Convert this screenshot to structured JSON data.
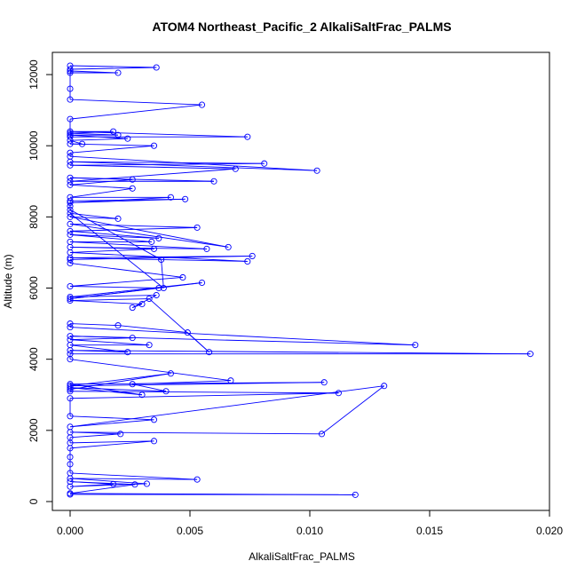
{
  "chart_data": {
    "type": "line",
    "title": "ATOM4 Northeast_Pacific_2 AlkaliSaltFrac_PALMS",
    "xlabel": "AlkaliSaltFrac_PALMS",
    "ylabel": "Altitude (m)",
    "xlim": [
      0,
      0.02
    ],
    "ylim": [
      0,
      12500
    ],
    "xticks": [
      0.0,
      0.005,
      0.01,
      0.015,
      0.02
    ],
    "xtick_labels": [
      "0.000",
      "0.005",
      "0.010",
      "0.015",
      "0.020"
    ],
    "yticks": [
      0,
      2000,
      4000,
      6000,
      8000,
      10000,
      12000
    ],
    "ytick_labels": [
      "0",
      "2000",
      "4000",
      "6000",
      "8000",
      "10000",
      "12000"
    ],
    "grid": false,
    "series": [
      {
        "color": "#0000ff",
        "marker": "open-circle",
        "points": [
          [
            0.0,
            200
          ],
          [
            0.0119,
            190
          ],
          [
            0.0,
            230
          ],
          [
            0.0027,
            480
          ],
          [
            0.0,
            560
          ],
          [
            0.0018,
            490
          ],
          [
            0.0,
            420
          ],
          [
            0.0032,
            500
          ],
          [
            0.0,
            650
          ],
          [
            0.0053,
            620
          ],
          [
            0.0,
            800
          ],
          [
            0.0,
            1050
          ],
          [
            0.0,
            1250
          ],
          [
            0.0,
            1500
          ],
          [
            0.0035,
            1700
          ],
          [
            0.0,
            1650
          ],
          [
            0.0,
            1800
          ],
          [
            0.0021,
            1900
          ],
          [
            0.0,
            1950
          ],
          [
            0.0105,
            1900
          ],
          [
            0.0131,
            3250
          ],
          [
            0.0,
            2100
          ],
          [
            0.0035,
            2300
          ],
          [
            0.0,
            2400
          ],
          [
            0.0,
            2900
          ],
          [
            0.0112,
            3050
          ],
          [
            0.0,
            3100
          ],
          [
            0.0,
            3150
          ],
          [
            0.0042,
            3600
          ],
          [
            0.0,
            3250
          ],
          [
            0.0106,
            3350
          ],
          [
            0.0,
            3300
          ],
          [
            0.003,
            3000
          ],
          [
            0.0,
            3200
          ],
          [
            0.004,
            3100
          ],
          [
            0.0026,
            3300
          ],
          [
            0.0067,
            3400
          ],
          [
            0.0,
            4000
          ],
          [
            0.0,
            4150
          ],
          [
            0.0192,
            4150
          ],
          [
            0.0,
            4250
          ],
          [
            0.0024,
            4200
          ],
          [
            0.0,
            4400
          ],
          [
            0.0033,
            4400
          ],
          [
            0.0,
            4550
          ],
          [
            0.0026,
            4600
          ],
          [
            0.0,
            4650
          ],
          [
            0.0144,
            4400
          ],
          [
            0.0,
            4900
          ],
          [
            0.0,
            5000
          ],
          [
            0.002,
            4950
          ],
          [
            0.0049,
            4750
          ],
          [
            0.0058,
            4200
          ],
          [
            0.0033,
            5700
          ],
          [
            0.0,
            5650
          ],
          [
            0.003,
            5550
          ],
          [
            0.0026,
            5450
          ],
          [
            0.0036,
            5800
          ],
          [
            0.0,
            5750
          ],
          [
            0.0055,
            6150
          ],
          [
            0.0,
            5700
          ],
          [
            0.0037,
            6000
          ],
          [
            0.0,
            6050
          ],
          [
            0.0047,
            6300
          ],
          [
            0.0,
            6700
          ],
          [
            0.0,
            6800
          ],
          [
            0.0076,
            6900
          ],
          [
            0.0,
            6850
          ],
          [
            0.0074,
            6750
          ],
          [
            0.0,
            7000
          ],
          [
            0.0035,
            7100
          ],
          [
            0.0,
            7150
          ],
          [
            0.0057,
            7100
          ],
          [
            0.0,
            7300
          ],
          [
            0.0034,
            7300
          ],
          [
            0.0,
            7500
          ],
          [
            0.0037,
            7400
          ],
          [
            0.0,
            7600
          ],
          [
            0.0053,
            7700
          ],
          [
            0.0,
            7800
          ],
          [
            0.0066,
            7150
          ],
          [
            0.0,
            8000
          ],
          [
            0.002,
            7950
          ],
          [
            0.0,
            8100
          ],
          [
            0.0039,
            6000
          ],
          [
            0.0038,
            6800
          ],
          [
            0.0,
            8200
          ],
          [
            0.0,
            8300
          ],
          [
            0.0,
            8450
          ],
          [
            0.0048,
            8500
          ],
          [
            0.0,
            8400
          ],
          [
            0.0042,
            8550
          ],
          [
            0.0,
            8550
          ],
          [
            0.0026,
            8800
          ],
          [
            0.0,
            8900
          ],
          [
            0.0026,
            9050
          ],
          [
            0.0,
            9100
          ],
          [
            0.006,
            9000
          ],
          [
            0.0,
            9000
          ],
          [
            0.0069,
            9350
          ],
          [
            0.0,
            9450
          ],
          [
            0.0081,
            9500
          ],
          [
            0.0,
            9550
          ],
          [
            0.0103,
            9300
          ],
          [
            0.0,
            9700
          ],
          [
            0.0,
            9800
          ],
          [
            0.0035,
            10000
          ],
          [
            0.0,
            10050
          ],
          [
            0.0005,
            10050
          ],
          [
            0.0,
            10150
          ],
          [
            0.0024,
            10200
          ],
          [
            0.0,
            10300
          ],
          [
            0.002,
            10300
          ],
          [
            0.0,
            10350
          ],
          [
            0.0018,
            10400
          ],
          [
            0.0,
            10400
          ],
          [
            0.0074,
            10250
          ],
          [
            0.0,
            10250
          ],
          [
            0.0,
            10750
          ],
          [
            0.0055,
            11150
          ],
          [
            0.0,
            11300
          ],
          [
            0.0,
            11600
          ],
          [
            0.0,
            12050
          ],
          [
            0.002,
            12050
          ],
          [
            0.0,
            12100
          ],
          [
            0.0,
            12150
          ],
          [
            0.0036,
            12200
          ],
          [
            0.0,
            12250
          ]
        ]
      }
    ]
  }
}
